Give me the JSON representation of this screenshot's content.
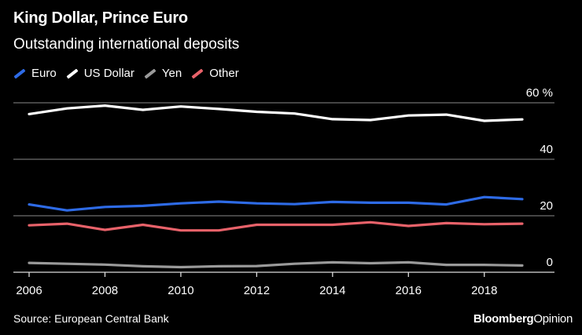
{
  "title": "King Dollar, Prince Euro",
  "subtitle": "Outstanding international deposits",
  "legend": [
    {
      "name": "Euro",
      "color": "#2e6be6"
    },
    {
      "name": "US Dollar",
      "color": "#ffffff"
    },
    {
      "name": "Yen",
      "color": "#9a9a9a"
    },
    {
      "name": "Other",
      "color": "#e8626a"
    }
  ],
  "source": "Source: European Central Bank",
  "brand": {
    "part1": "Bloomberg",
    "part2": "Opinion"
  },
  "chart_data": {
    "type": "line",
    "title": "King Dollar, Prince Euro",
    "subtitle": "Outstanding international deposits",
    "xlabel": "",
    "ylabel": "%",
    "x": [
      2006,
      2007,
      2008,
      2009,
      2010,
      2011,
      2012,
      2013,
      2014,
      2015,
      2016,
      2017,
      2018,
      2019
    ],
    "xlim": [
      2006,
      2019
    ],
    "ylim": [
      0,
      60
    ],
    "x_ticks": [
      "2006",
      "2008",
      "2010",
      "2012",
      "2014",
      "2016",
      "2018"
    ],
    "y_ticks": [
      "0",
      "20",
      "40",
      "60 %"
    ],
    "series": [
      {
        "name": "US Dollar",
        "color": "#ffffff",
        "values": [
          56,
          58,
          59,
          57.5,
          58.7,
          57.8,
          56.8,
          56.2,
          54.2,
          53.9,
          55.5,
          55.8,
          53.6,
          54.1
        ]
      },
      {
        "name": "Euro",
        "color": "#2e6be6",
        "values": [
          24,
          21.9,
          23.1,
          23.5,
          24.4,
          25,
          24.4,
          24.1,
          24.9,
          24.6,
          24.6,
          24,
          26.6,
          25.9
        ]
      },
      {
        "name": "Other",
        "color": "#e8626a",
        "values": [
          16.6,
          17.2,
          15,
          16.8,
          14.8,
          14.8,
          16.8,
          16.8,
          16.8,
          17.7,
          16.4,
          17.4,
          17,
          17.2
        ]
      },
      {
        "name": "Yen",
        "color": "#9a9a9a",
        "values": [
          3.3,
          3,
          2.7,
          2.1,
          1.8,
          2.1,
          2.2,
          3,
          3.5,
          3.2,
          3.5,
          2.6,
          2.6,
          2.4
        ]
      }
    ]
  }
}
